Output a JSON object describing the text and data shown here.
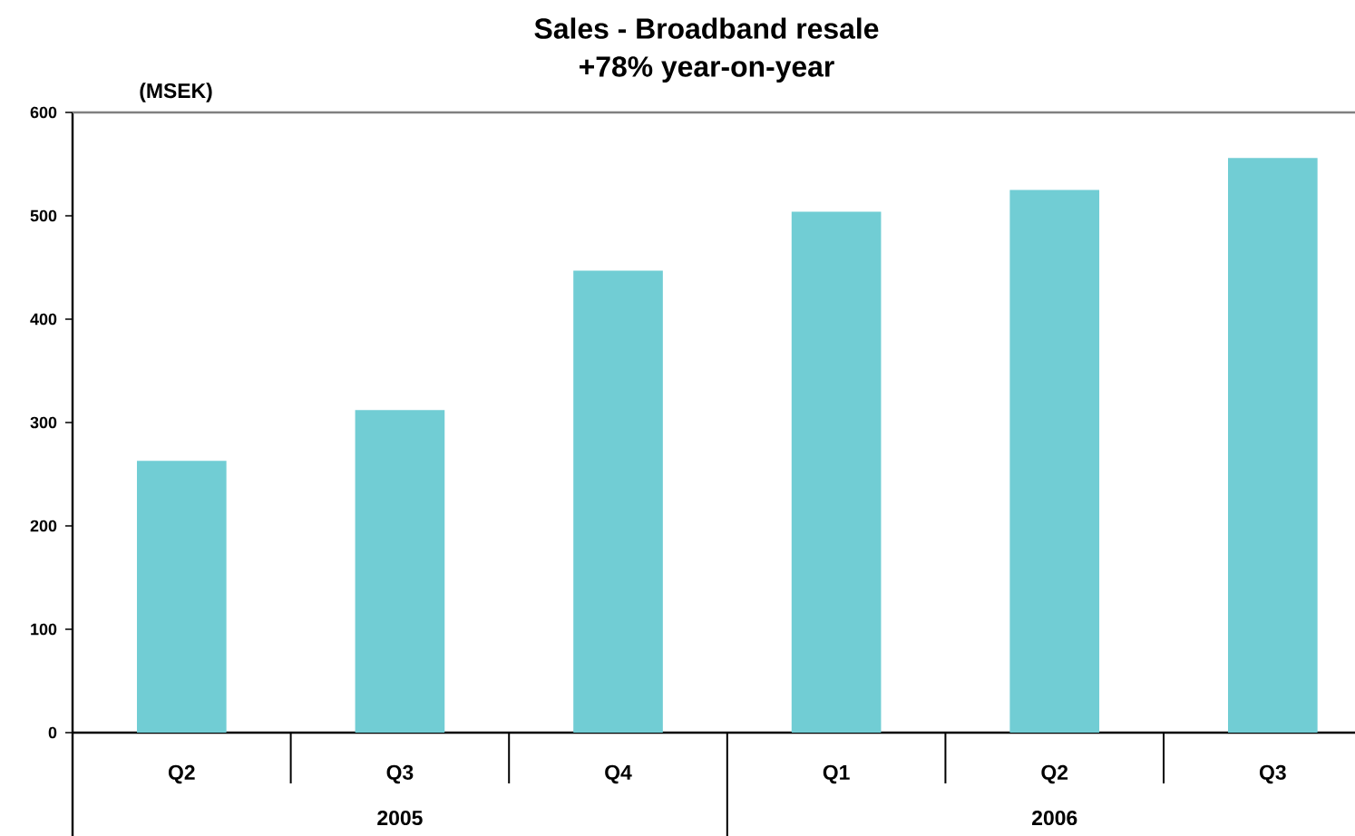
{
  "chart_data": {
    "type": "bar",
    "title": "Sales - Broadband resale",
    "subtitle": "+78% year-on-year",
    "ylabel": "(MSEK)",
    "categories": [
      "Q2",
      "Q3",
      "Q4",
      "Q1",
      "Q2",
      "Q3"
    ],
    "values": [
      263,
      312,
      447,
      504,
      525,
      556
    ],
    "color": "#71cdd4",
    "ylim": [
      0,
      600
    ],
    "yticks": [
      0,
      100,
      200,
      300,
      400,
      500,
      600
    ],
    "annotations": [
      "2005",
      "2006"
    ]
  }
}
